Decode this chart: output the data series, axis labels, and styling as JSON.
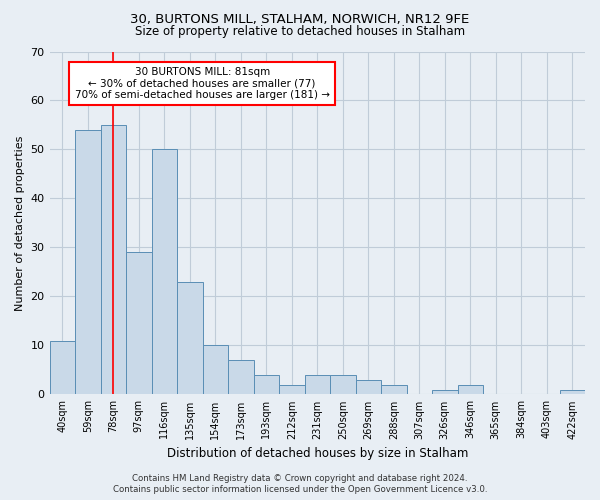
{
  "title1": "30, BURTONS MILL, STALHAM, NORWICH, NR12 9FE",
  "title2": "Size of property relative to detached houses in Stalham",
  "xlabel": "Distribution of detached houses by size in Stalham",
  "ylabel": "Number of detached properties",
  "categories": [
    "40sqm",
    "59sqm",
    "78sqm",
    "97sqm",
    "116sqm",
    "135sqm",
    "154sqm",
    "173sqm",
    "193sqm",
    "212sqm",
    "231sqm",
    "250sqm",
    "269sqm",
    "288sqm",
    "307sqm",
    "326sqm",
    "346sqm",
    "365sqm",
    "384sqm",
    "403sqm",
    "422sqm"
  ],
  "values": [
    11,
    54,
    55,
    29,
    50,
    23,
    10,
    7,
    4,
    2,
    4,
    4,
    3,
    2,
    0,
    1,
    2,
    0,
    0,
    0,
    1
  ],
  "bar_color": "#c9d9e8",
  "bar_edge_color": "#5a8eb5",
  "bar_width": 1.0,
  "ylim": [
    0,
    70
  ],
  "yticks": [
    0,
    10,
    20,
    30,
    40,
    50,
    60,
    70
  ],
  "property_line_x": 2,
  "annotation_text": "30 BURTONS MILL: 81sqm\n← 30% of detached houses are smaller (77)\n70% of semi-detached houses are larger (181) →",
  "footer": "Contains HM Land Registry data © Crown copyright and database right 2024.\nContains public sector information licensed under the Open Government Licence v3.0.",
  "bg_color": "#e8eef4",
  "plot_bg_color": "#e8eef4",
  "grid_color": "#c0ccd8"
}
